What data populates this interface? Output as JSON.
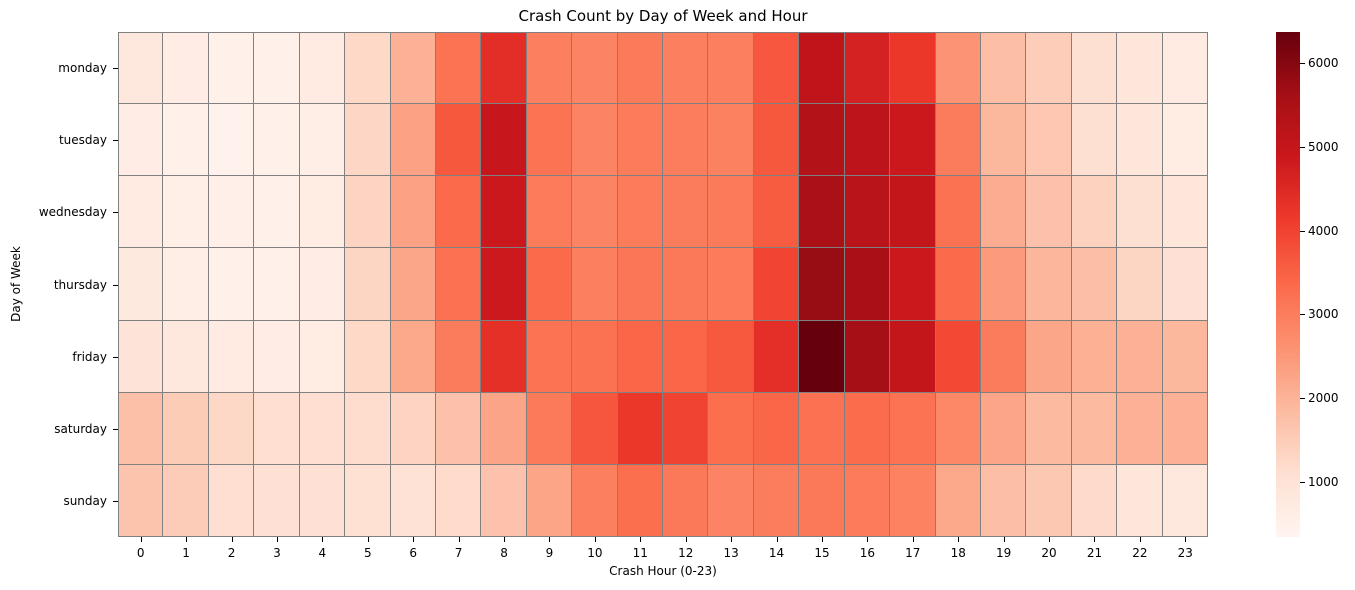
{
  "title": "Crash Count by Day of Week and Hour",
  "xlabel": "Crash Hour (0-23)",
  "ylabel": "Day of Week",
  "colormap": {
    "name": "Reds",
    "stops": [
      "#fff5f0",
      "#fee0d2",
      "#fcbba1",
      "#fc9272",
      "#fb6a4a",
      "#ef3b2c",
      "#cb181d",
      "#a50f15",
      "#67000d"
    ],
    "vmin": 345,
    "vmax": 6370,
    "ticks": [
      1000,
      2000,
      3000,
      4000,
      5000,
      6000
    ],
    "tick_labels": [
      "1000",
      "2000",
      "3000",
      "4000",
      "5000",
      "6000"
    ]
  },
  "grid_line_color": "#808080",
  "chart_data": {
    "type": "heatmap",
    "title": "Crash Count by Day of Week and Hour",
    "xlabel": "Crash Hour (0-23)",
    "ylabel": "Day of Week",
    "x": [
      "0",
      "1",
      "2",
      "3",
      "4",
      "5",
      "6",
      "7",
      "8",
      "9",
      "10",
      "11",
      "12",
      "13",
      "14",
      "15",
      "16",
      "17",
      "18",
      "19",
      "20",
      "21",
      "22",
      "23"
    ],
    "y": [
      "monday",
      "tuesday",
      "wednesday",
      "thursday",
      "friday",
      "saturday",
      "sunday"
    ],
    "colorbar_range": [
      345,
      6370
    ],
    "values": [
      [
        830,
        650,
        520,
        520,
        700,
        1250,
        2030,
        3180,
        4380,
        2940,
        2880,
        3060,
        2940,
        2940,
        3660,
        5100,
        4680,
        4200,
        2580,
        1790,
        1490,
        1100,
        890,
        700
      ],
      [
        620,
        500,
        480,
        490,
        600,
        1300,
        2330,
        3650,
        4930,
        3180,
        2880,
        3040,
        3000,
        2930,
        3650,
        5350,
        5170,
        4860,
        3010,
        1910,
        1610,
        1100,
        900,
        680
      ],
      [
        700,
        560,
        550,
        500,
        660,
        1350,
        2320,
        3350,
        4880,
        3040,
        2880,
        3040,
        3010,
        3050,
        3600,
        5500,
        5220,
        5050,
        3200,
        2130,
        1720,
        1390,
        1100,
        900
      ],
      [
        780,
        600,
        530,
        520,
        620,
        1330,
        2230,
        3220,
        4840,
        3330,
        2940,
        3130,
        3100,
        3040,
        3960,
        5770,
        5530,
        4870,
        3340,
        2450,
        1950,
        1800,
        1330,
        1050
      ],
      [
        940,
        820,
        690,
        650,
        680,
        1250,
        2200,
        3010,
        4350,
        3190,
        3210,
        3420,
        3400,
        3630,
        4360,
        6370,
        5620,
        5050,
        3900,
        3010,
        2230,
        2060,
        2050,
        1910
      ],
      [
        1740,
        1510,
        1260,
        1120,
        1110,
        1150,
        1340,
        1720,
        2270,
        3060,
        3670,
        4200,
        3980,
        3260,
        3400,
        3230,
        3320,
        3190,
        2800,
        2250,
        1870,
        1860,
        2030,
        2050
      ],
      [
        1660,
        1500,
        1120,
        1050,
        1060,
        1070,
        1030,
        1200,
        1700,
        2260,
        2940,
        3270,
        3070,
        2880,
        3000,
        3100,
        3040,
        2910,
        2200,
        1770,
        1590,
        1220,
        900,
        830
      ]
    ]
  }
}
